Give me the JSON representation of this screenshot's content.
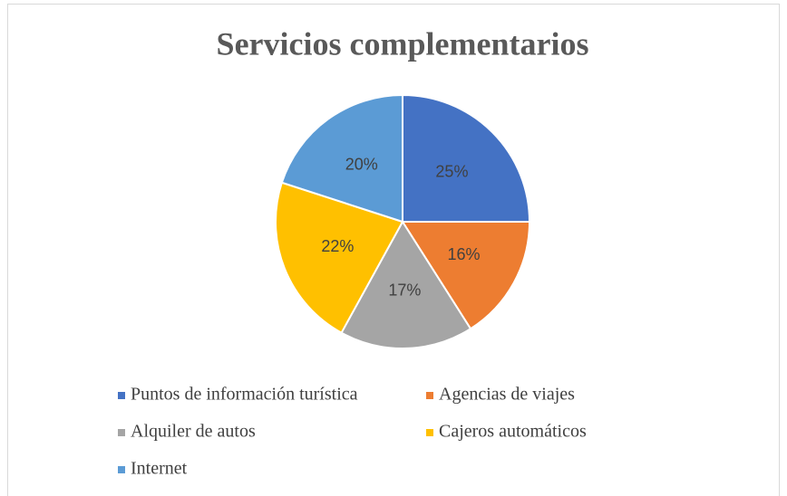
{
  "chart_data": {
    "type": "pie",
    "title": "Servicios complementarios",
    "categories": [
      "Puntos de información turística",
      "Agencias de viajes",
      "Alquiler de autos",
      "Cajeros automáticos",
      "Internet"
    ],
    "values": [
      25,
      16,
      17,
      22,
      20
    ],
    "value_labels": [
      "25%",
      "16%",
      "17%",
      "22%",
      "20%"
    ],
    "colors": [
      "#4472c4",
      "#ed7d31",
      "#a5a5a5",
      "#ffc000",
      "#5b9bd5"
    ],
    "legend": "bottom"
  }
}
